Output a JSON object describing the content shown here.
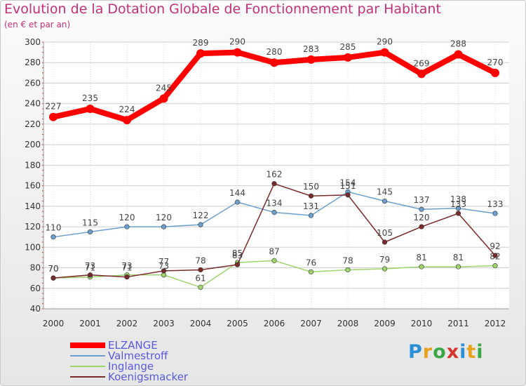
{
  "header": {
    "title": "Evolution de la Dotation Globale de Fonctionnement par Habitant",
    "subtitle": "(en € et par an)"
  },
  "logo": {
    "letters": [
      "P",
      "r",
      "o",
      "x",
      "i",
      "t",
      "i"
    ],
    "colors": [
      "#2a8fd4",
      "#e8a21f",
      "#3aa845",
      "#d4362e",
      "#2a8fd4",
      "#e8a21f",
      "#3aa845"
    ]
  },
  "chart_data": {
    "type": "line",
    "title": "Evolution de la Dotation Globale de Fonctionnement par Habitant",
    "subtitle": "(en € et par an)",
    "xlabel": "",
    "ylabel": "",
    "x": [
      "2000",
      "2001",
      "2002",
      "2003",
      "2004",
      "2005",
      "2006",
      "2007",
      "2008",
      "2009",
      "2010",
      "2011",
      "2012"
    ],
    "ylim": [
      40,
      300
    ],
    "yticks": [
      40,
      60,
      80,
      100,
      120,
      140,
      160,
      180,
      200,
      220,
      240,
      260,
      280,
      300
    ],
    "grid": true,
    "legend_position": "bottom-left",
    "series": [
      {
        "name": "ELZANGE",
        "color": "#ff0000",
        "text_color": "#5a5ae0",
        "values": [
          227,
          235,
          224,
          245,
          289,
          290,
          280,
          283,
          285,
          290,
          269,
          288,
          270
        ]
      },
      {
        "name": "Valmestroff",
        "color": "#6c9fcc",
        "text_color": "#5a5ae0",
        "values": [
          110,
          115,
          120,
          120,
          122,
          144,
          134,
          131,
          154,
          145,
          137,
          138,
          133
        ]
      },
      {
        "name": "Inglange",
        "color": "#9ed46a",
        "text_color": "#5a5ae0",
        "values": [
          70,
          71,
          73,
          73,
          61,
          85,
          87,
          76,
          78,
          79,
          81,
          81,
          82
        ]
      },
      {
        "name": "Koenigsmacker",
        "color": "#7a2a2a",
        "text_color": "#5a5ae0",
        "values": [
          70,
          73,
          71,
          77,
          78,
          83,
          162,
          150,
          151,
          105,
          120,
          133,
          92
        ]
      }
    ]
  }
}
